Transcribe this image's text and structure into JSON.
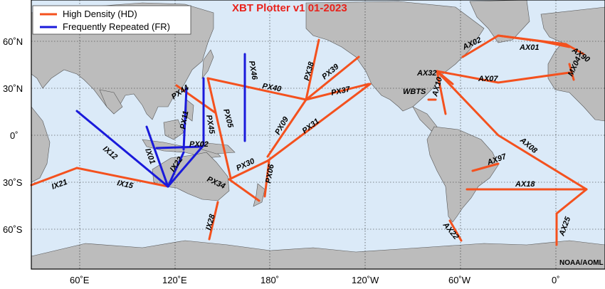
{
  "title": "XBT Plotter v1 01-2023",
  "credit": "NOAA/AOML",
  "colors": {
    "ocean": "#dbeaf8",
    "land": "#bcbcbc",
    "high_density": "#f4511e",
    "frequently_repeated": "#1a1adb"
  },
  "legend": {
    "high_density": "High Density (HD)",
    "frequently_repeated": "Frequently Repeated (FR)"
  },
  "axes": {
    "lat_labels": [
      "60˚N",
      "30˚N",
      "0˚",
      "30˚S",
      "60˚S"
    ],
    "lon_labels": [
      "60˚E",
      "120˚E",
      "180˚",
      "120˚W",
      "60˚W",
      "0˚"
    ]
  },
  "transects": {
    "AX01": "AX01",
    "AX02": "AX02",
    "AX90": "AX90",
    "MX04": "MX04",
    "AX07": "AX07",
    "AX32": "AX32",
    "AX10": "AX10",
    "WBTS": "WBTS",
    "AX08": "AX08",
    "AX97": "AX97",
    "AX18": "AX18",
    "AX22": "AX22",
    "AX25": "AX25",
    "PX38": "PX38",
    "PX39": "PX39",
    "PX37": "PX37",
    "PX40": "PX40",
    "PX46": "PX46",
    "PX44": "PX44",
    "PX11": "PX11",
    "PX45": "PX45",
    "PX05": "PX05",
    "PX09": "PX09",
    "PX31": "PX31",
    "PX02": "PX02",
    "PX30": "PX30",
    "PX06": "PX06",
    "PX34": "PX34",
    "IX01": "IX01",
    "IX12": "IX12",
    "IX22": "IX22",
    "IX15": "IX15",
    "IX21": "IX21",
    "IX28": "IX28"
  }
}
